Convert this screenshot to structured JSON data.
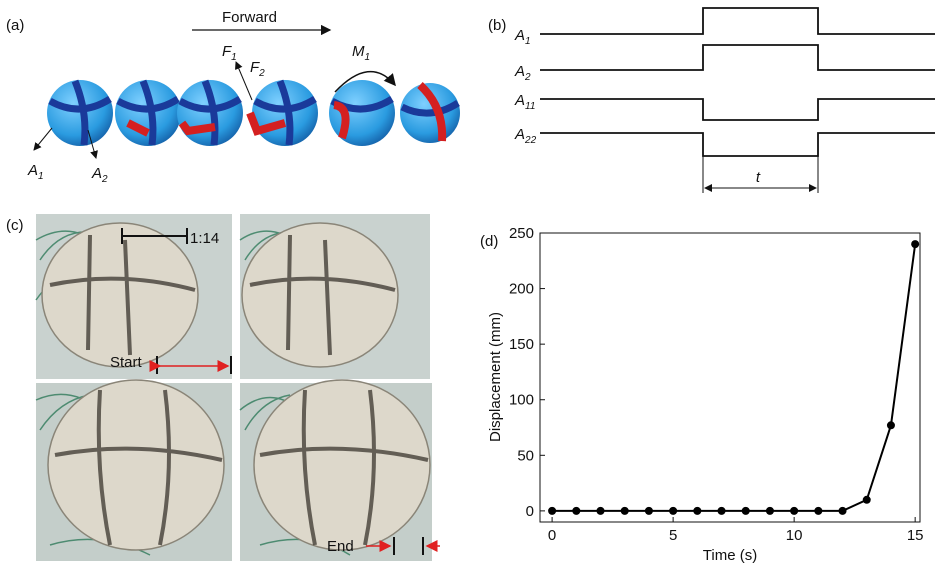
{
  "panel_a": {
    "label": "(a)",
    "forward": "Forward",
    "f1": {
      "main": "F",
      "sub": "1"
    },
    "f2": {
      "main": "F",
      "sub": "2"
    },
    "m1": {
      "main": "M",
      "sub": "1"
    },
    "a1": {
      "main": "A",
      "sub": "1"
    },
    "a2": {
      "main": "A",
      "sub": "2"
    }
  },
  "panel_b": {
    "label": "(b)",
    "signals": [
      {
        "main": "A",
        "sub": "1"
      },
      {
        "main": "A",
        "sub": "2"
      },
      {
        "main": "A",
        "sub": "11"
      },
      {
        "main": "A",
        "sub": "22"
      }
    ],
    "duration": "t"
  },
  "panel_c": {
    "label": "(c)",
    "scale": "1:14",
    "start": "Start",
    "end": "End"
  },
  "chart_data": {
    "type": "line",
    "label": "(d)",
    "xlabel": "Time (s)",
    "ylabel": "Displacement (mm)",
    "x": [
      0,
      1,
      2,
      3,
      4,
      5,
      6,
      7,
      8,
      9,
      10,
      11,
      12,
      13,
      14,
      15
    ],
    "values": [
      0,
      0,
      0,
      0,
      0,
      0,
      0,
      0,
      0,
      0,
      0,
      0,
      0,
      10,
      77,
      240
    ],
    "color": "#000000",
    "xlim": [
      -0.5,
      15.2
    ],
    "ylim": [
      -10,
      250
    ],
    "xticks": [
      0,
      5,
      10,
      15
    ],
    "yticks": [
      0,
      50,
      100,
      150,
      200,
      250
    ],
    "grid": false
  }
}
